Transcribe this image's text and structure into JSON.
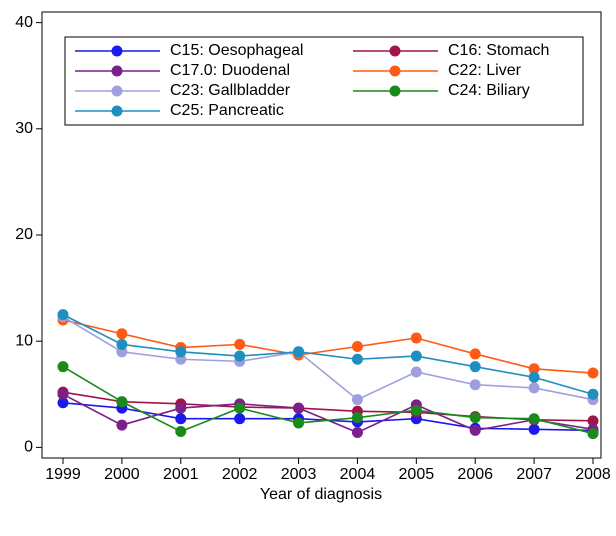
{
  "chart_data": {
    "type": "line",
    "x_label": "Year of diagnosis",
    "x": [
      1999,
      2000,
      2001,
      2002,
      2003,
      2004,
      2005,
      2006,
      2007,
      2008
    ],
    "xlim": [
      1999,
      2008
    ],
    "xticks": [
      1999,
      2000,
      2001,
      2002,
      2003,
      2004,
      2005,
      2006,
      2007,
      2008
    ],
    "ylim": [
      -1,
      41
    ],
    "yticks": [
      0,
      10,
      20,
      30,
      40
    ],
    "grid": false,
    "legend": "upper center",
    "series": [
      {
        "name": "C15: Oesophageal",
        "color": "#1a1aee",
        "values": [
          4.2,
          3.7,
          2.7,
          2.7,
          2.7,
          2.4,
          2.7,
          1.8,
          1.7,
          1.6
        ]
      },
      {
        "name": "C16: Stomach",
        "color": "#a0144a",
        "values": [
          5.2,
          4.3,
          4.1,
          3.8,
          3.7,
          3.4,
          3.3,
          2.9,
          2.6,
          2.5
        ]
      },
      {
        "name": "C17.0: Duodenal",
        "color": "#7b1f8a",
        "values": [
          5.0,
          2.1,
          3.7,
          4.1,
          3.7,
          1.4,
          4.0,
          1.6,
          2.6,
          1.7
        ]
      },
      {
        "name": "C22: Liver",
        "color": "#ff5a14",
        "values": [
          12.0,
          10.7,
          9.4,
          9.7,
          8.7,
          9.5,
          10.3,
          8.8,
          7.4,
          7.0
        ]
      },
      {
        "name": "C23: Gallbladder",
        "color": "#9f9fe0",
        "values": [
          12.3,
          9.0,
          8.3,
          8.1,
          9.0,
          4.5,
          7.1,
          5.9,
          5.6,
          4.5
        ]
      },
      {
        "name": "C24: Biliary",
        "color": "#1a8a1a",
        "values": [
          7.6,
          4.3,
          1.5,
          3.7,
          2.3,
          2.8,
          3.5,
          2.8,
          2.7,
          1.3
        ]
      },
      {
        "name": "C25: Pancreatic",
        "color": "#1e8fbf",
        "values": [
          12.5,
          9.7,
          9.0,
          8.6,
          9.0,
          8.3,
          8.6,
          7.6,
          6.6,
          5.0
        ]
      }
    ]
  }
}
